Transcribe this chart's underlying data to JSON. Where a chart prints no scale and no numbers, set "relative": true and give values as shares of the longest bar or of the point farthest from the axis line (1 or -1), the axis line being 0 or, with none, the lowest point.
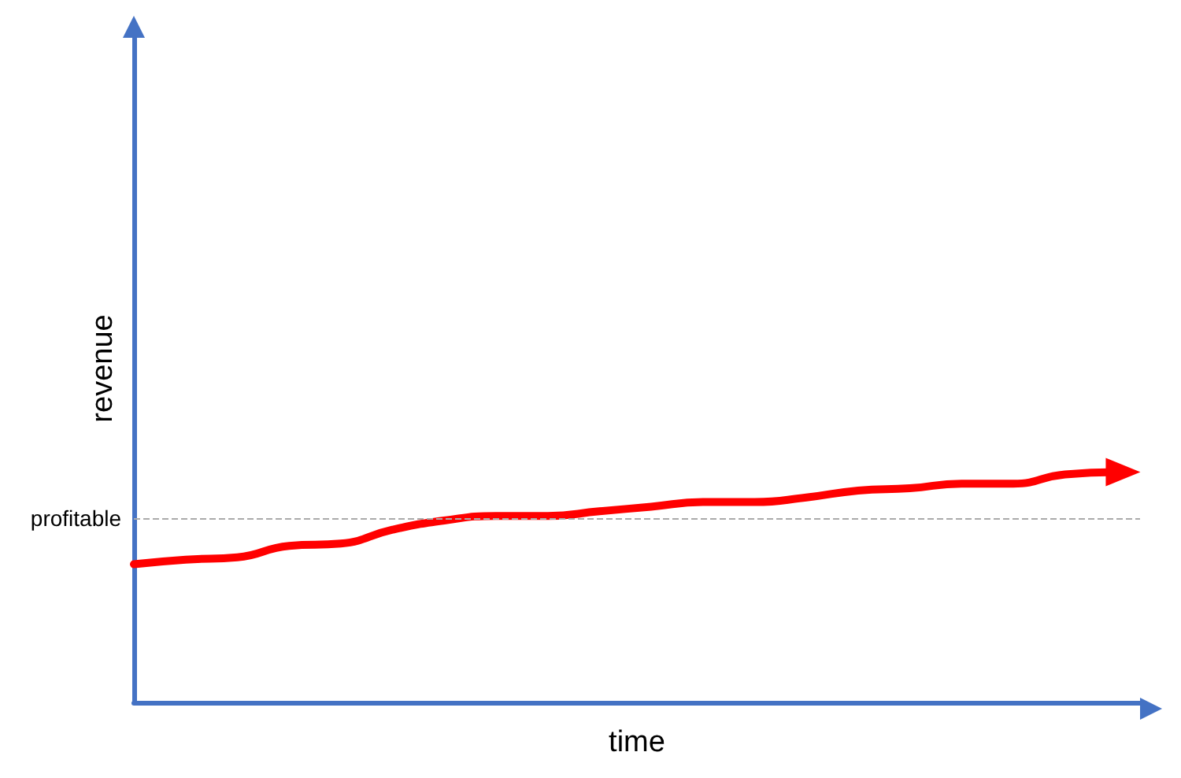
{
  "chart_data": {
    "type": "line",
    "relative": true,
    "xlabel": "time",
    "ylabel": "revenue",
    "categories": [
      null,
      null,
      null,
      null,
      null,
      null,
      null,
      null,
      null,
      null,
      null,
      null,
      null,
      null,
      null,
      null,
      null,
      null,
      null,
      null
    ],
    "series": [
      {
        "color": "#ff0000",
        "values": [
          0.6,
          0.62,
          0.63,
          0.68,
          0.69,
          0.75,
          0.79,
          0.81,
          0.81,
          0.83,
          0.85,
          0.87,
          0.87,
          0.89,
          0.92,
          0.93,
          0.95,
          0.95,
          0.99,
          1
        ]
      }
    ],
    "ref_lines": [
      {
        "axis": "y",
        "value": 0.8,
        "label": "profitable",
        "color": "#aaaaaa",
        "line_style": "dashed"
      }
    ],
    "grid": false,
    "marker": "none"
  }
}
